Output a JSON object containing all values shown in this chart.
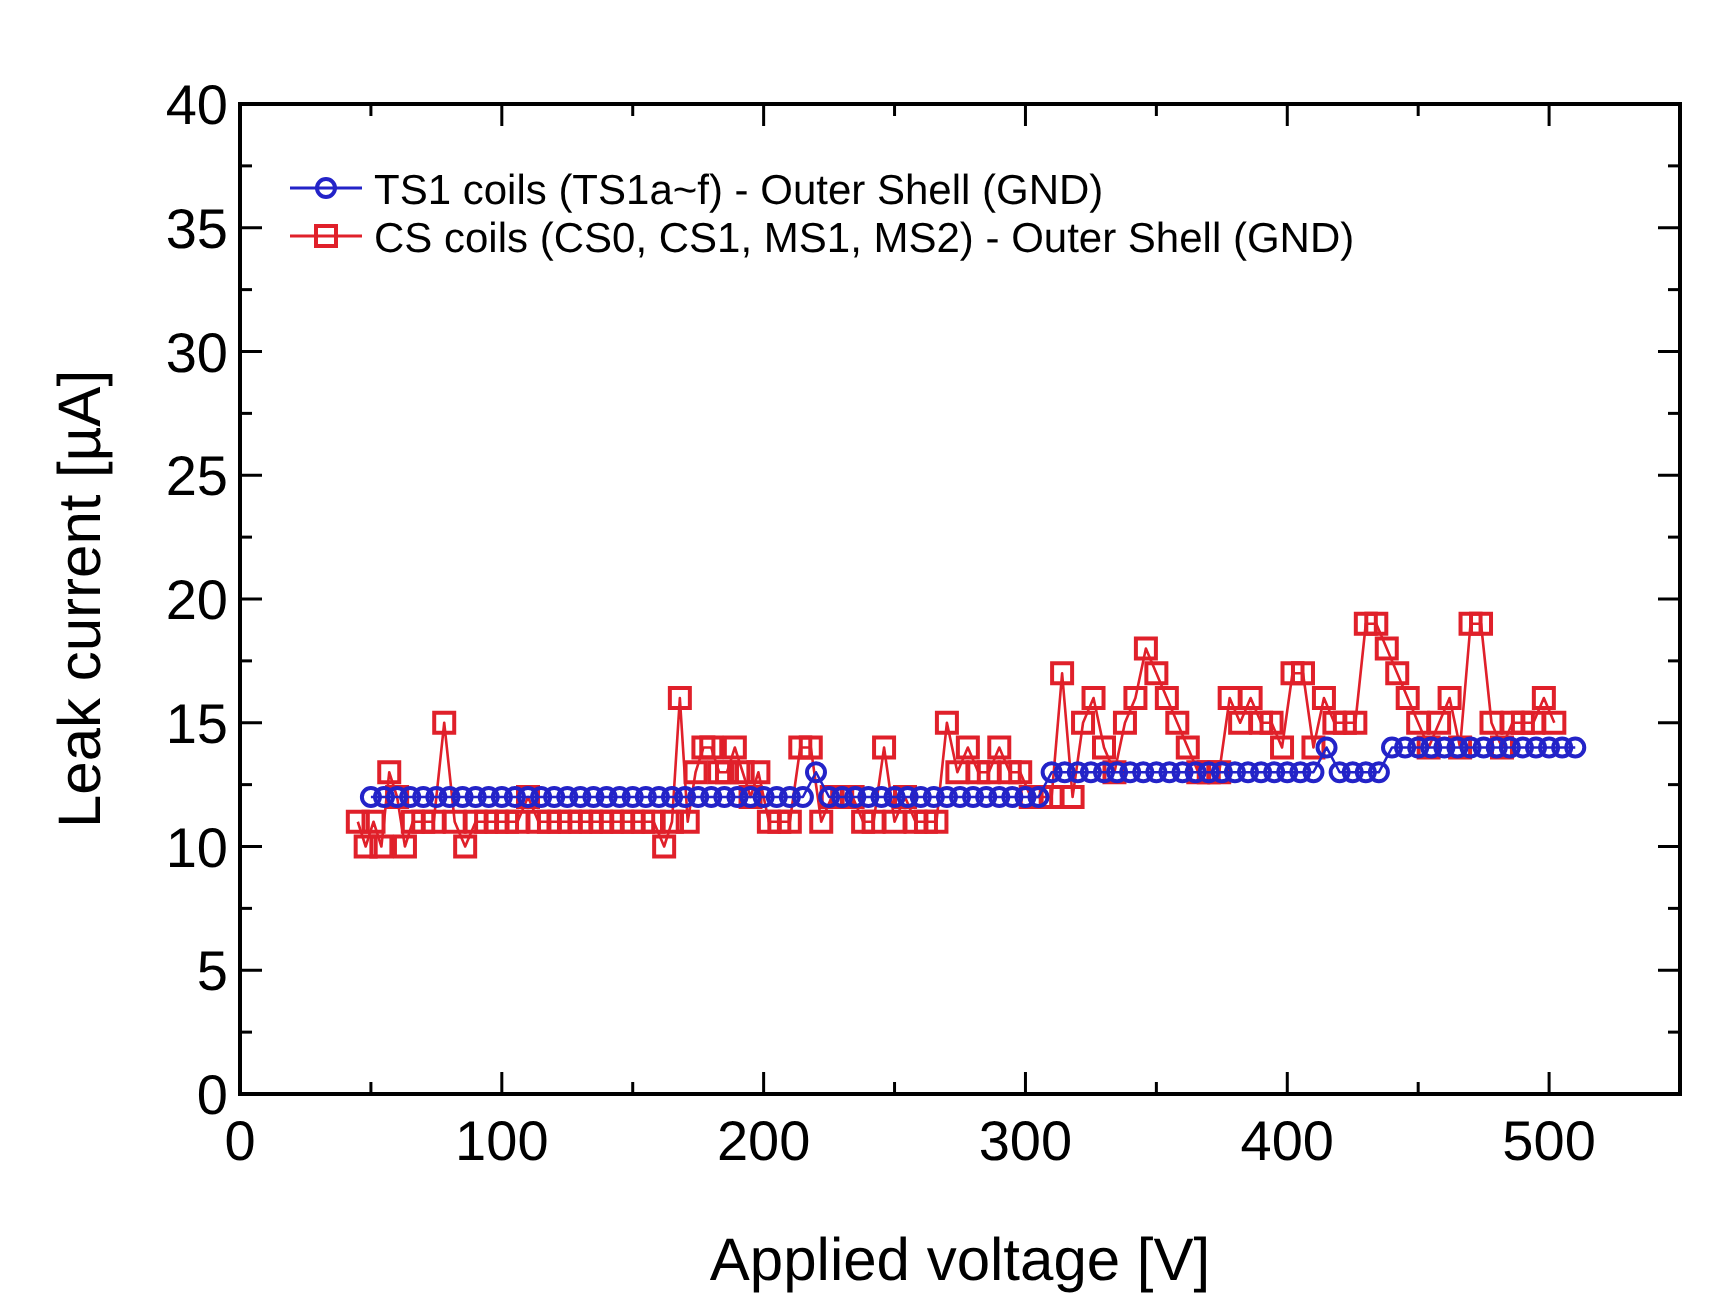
{
  "chart_data": {
    "type": "line",
    "xlabel": "Applied voltage [V]",
    "ylabel": "Leak current [µA]",
    "xlim": [
      0,
      550
    ],
    "ylim": [
      0,
      40
    ],
    "xticks": [
      0,
      {
        "value": 50,
        "label": null
      },
      100,
      {
        "value": 150,
        "label": null
      },
      200,
      {
        "value": 250,
        "label": null
      },
      300,
      {
        "value": 350,
        "label": null
      },
      400,
      {
        "value": 450,
        "label": null
      },
      500
    ],
    "yticks": [
      0,
      {
        "value": 2.5,
        "label": null
      },
      5,
      {
        "value": 7.5,
        "label": null
      },
      10,
      {
        "value": 12.5,
        "label": null
      },
      15,
      {
        "value": 17.5,
        "label": null
      },
      20,
      {
        "value": 22.5,
        "label": null
      },
      25,
      {
        "value": 27.5,
        "label": null
      },
      30,
      {
        "value": 32.5,
        "label": null
      },
      35,
      {
        "value": 37.5,
        "label": null
      },
      40
    ],
    "grid": false,
    "legend": "top left",
    "line_style": "solid",
    "series": [
      {
        "name": "TS1 coils (TS1a~f) - Outer Shell (GND)",
        "color": "#2323c8",
        "marker": "circle",
        "x": [
          50,
          55,
          60,
          65,
          70,
          75,
          80,
          85,
          90,
          95,
          100,
          105,
          110,
          115,
          120,
          125,
          130,
          135,
          140,
          145,
          150,
          155,
          160,
          165,
          170,
          175,
          180,
          185,
          190,
          195,
          200,
          205,
          210,
          215,
          220,
          225,
          230,
          235,
          240,
          245,
          250,
          255,
          260,
          265,
          270,
          275,
          280,
          285,
          290,
          295,
          300,
          305,
          310,
          315,
          320,
          325,
          330,
          335,
          340,
          345,
          350,
          355,
          360,
          365,
          370,
          375,
          380,
          385,
          390,
          395,
          400,
          405,
          410,
          415,
          420,
          425,
          430,
          435,
          440,
          445,
          450,
          455,
          460,
          465,
          470,
          475,
          480,
          485,
          490,
          495,
          500,
          505,
          510
        ],
        "values": [
          12,
          12,
          12,
          12,
          12,
          12,
          12,
          12,
          12,
          12,
          12,
          12,
          12,
          12,
          12,
          12,
          12,
          12,
          12,
          12,
          12,
          12,
          12,
          12,
          12,
          12,
          12,
          12,
          12,
          12,
          12,
          12,
          12,
          12,
          13,
          12,
          12,
          12,
          12,
          12,
          12,
          12,
          12,
          12,
          12,
          12,
          12,
          12,
          12,
          12,
          12,
          12,
          13,
          13,
          13,
          13,
          13,
          13,
          13,
          13,
          13,
          13,
          13,
          13,
          13,
          13,
          13,
          13,
          13,
          13,
          13,
          13,
          13,
          14,
          13,
          13,
          13,
          13,
          14,
          14,
          14,
          14,
          14,
          14,
          14,
          14,
          14,
          14,
          14,
          14,
          14,
          14,
          14
        ]
      },
      {
        "name": "CS coils (CS0, CS1, MS1, MS2) - Outer Shell (GND)",
        "color": "#e0202a",
        "marker": "square",
        "x": [
          45,
          48,
          51,
          54,
          57,
          60,
          63,
          66,
          70,
          74,
          78,
          82,
          86,
          90,
          94,
          98,
          102,
          106,
          110,
          114,
          118,
          122,
          126,
          130,
          134,
          138,
          142,
          146,
          150,
          154,
          158,
          162,
          165,
          168,
          171,
          174,
          177,
          180,
          183,
          186,
          189,
          192,
          195,
          198,
          202,
          206,
          210,
          214,
          218,
          222,
          226,
          230,
          234,
          238,
          242,
          246,
          250,
          254,
          258,
          262,
          266,
          270,
          274,
          278,
          282,
          286,
          290,
          294,
          298,
          302,
          306,
          310,
          314,
          318,
          322,
          326,
          330,
          334,
          338,
          342,
          346,
          350,
          354,
          358,
          362,
          366,
          370,
          374,
          378,
          382,
          386,
          390,
          394,
          398,
          402,
          406,
          410,
          414,
          418,
          422,
          426,
          430,
          434,
          438,
          442,
          446,
          450,
          454,
          458,
          462,
          466,
          470,
          474,
          478,
          482,
          486,
          490,
          494,
          498,
          502
        ],
        "values": [
          11,
          10,
          11,
          10,
          13,
          12,
          10,
          11,
          11,
          11,
          15,
          11,
          10,
          11,
          11,
          11,
          11,
          11,
          12,
          11,
          11,
          11,
          11,
          11,
          11,
          11,
          11,
          11,
          11,
          11,
          11,
          10,
          11,
          16,
          11,
          13,
          14,
          14,
          13,
          13,
          14,
          13,
          12,
          13,
          11,
          11,
          11,
          14,
          14,
          11,
          12,
          12,
          12,
          11,
          11,
          14,
          11,
          12,
          11,
          11,
          11,
          15,
          13,
          14,
          13,
          13,
          14,
          13,
          13,
          12,
          12,
          12,
          17,
          12,
          15,
          16,
          14,
          13,
          15,
          16,
          18,
          17,
          16,
          15,
          14,
          13,
          13,
          13,
          16,
          15,
          16,
          15,
          15,
          14,
          17,
          17,
          14,
          16,
          15,
          15,
          15,
          19,
          19,
          18,
          17,
          16,
          15,
          14,
          15,
          16,
          14,
          19,
          19,
          15,
          14,
          15,
          15,
          15,
          16,
          15
        ]
      }
    ]
  }
}
